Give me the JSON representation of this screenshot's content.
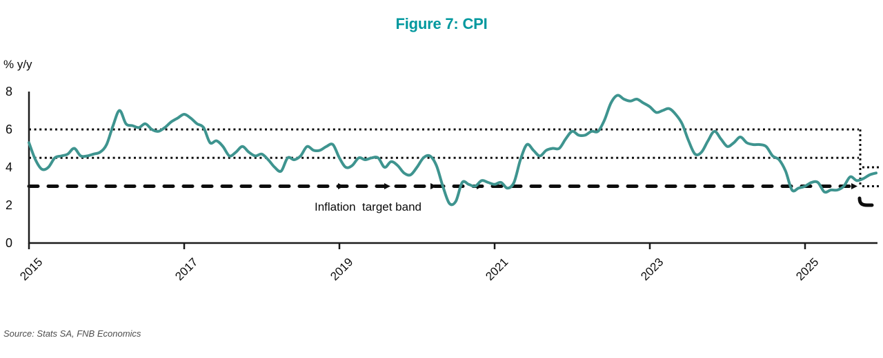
{
  "figure": {
    "title": "Figure 7: CPI",
    "y_axis_unit_label": "% y/y",
    "annotation": "Inflation  target band",
    "source": "Source: Stats SA, FNB Economics"
  },
  "colors": {
    "title_teal": "#00989E",
    "cpi_line": "#3E948F",
    "band_lines": "#0d0d0d",
    "axis": "#1a1a1a",
    "source_text": "#4d4d4d"
  },
  "chart_data": {
    "type": "line",
    "title": "Figure 7: CPI",
    "ylabel": "% y/y",
    "ylim": [
      0,
      8
    ],
    "y_ticks": [
      8,
      6,
      4,
      2,
      0
    ],
    "x_ticks": [
      "2015",
      "2017",
      "2019",
      "2021",
      "2023",
      "2025"
    ],
    "grid": false,
    "legend": "none",
    "annotation": "Inflation  target band",
    "series": [
      {
        "name": "CPI % y/y",
        "frequency": "monthly",
        "start": "2014-12",
        "end": "2025-11",
        "values": [
          5.3,
          4.4,
          3.9,
          4.0,
          4.5,
          4.6,
          4.7,
          5.0,
          4.6,
          4.6,
          4.7,
          4.8,
          5.2,
          6.2,
          7.0,
          6.3,
          6.2,
          6.1,
          6.3,
          6.0,
          5.9,
          6.1,
          6.4,
          6.6,
          6.8,
          6.6,
          6.3,
          6.1,
          5.3,
          5.4,
          5.1,
          4.6,
          4.8,
          5.1,
          4.8,
          4.6,
          4.7,
          4.4,
          4.0,
          3.8,
          4.5,
          4.4,
          4.6,
          5.1,
          4.9,
          4.9,
          5.1,
          5.2,
          4.5,
          4.0,
          4.1,
          4.5,
          4.4,
          4.5,
          4.5,
          4.0,
          4.3,
          4.1,
          3.7,
          3.6,
          4.0,
          4.5,
          4.6,
          4.1,
          3.0,
          2.1,
          2.2,
          3.2,
          3.1,
          3.0,
          3.3,
          3.2,
          3.1,
          3.2,
          2.9,
          3.2,
          4.4,
          5.2,
          4.9,
          4.6,
          4.9,
          5.0,
          5.0,
          5.5,
          5.9,
          5.7,
          5.7,
          5.9,
          5.9,
          6.5,
          7.4,
          7.8,
          7.6,
          7.5,
          7.6,
          7.4,
          7.2,
          6.9,
          7.0,
          7.1,
          6.8,
          6.3,
          5.4,
          4.7,
          4.8,
          5.4,
          5.9,
          5.5,
          5.1,
          5.3,
          5.6,
          5.3,
          5.2,
          5.2,
          5.1,
          4.6,
          4.4,
          3.8,
          2.8,
          2.9,
          3.0,
          3.2,
          3.2,
          2.7,
          2.8,
          2.8,
          3.0,
          3.5,
          3.3,
          3.4,
          3.6,
          3.7
        ]
      }
    ],
    "reference_lines": [
      {
        "name": "target-band-upper",
        "value": 6,
        "style": "dotted",
        "segment": "before-break"
      },
      {
        "name": "target-band-midpoint",
        "value": 4.5,
        "style": "dotted",
        "segment": "before-break"
      },
      {
        "name": "target-band-lower",
        "value": 3,
        "style": "bold-dashed",
        "segment": "before-break"
      },
      {
        "name": "new-target-upper",
        "value": 4,
        "style": "dotted",
        "segment": "after-break"
      },
      {
        "name": "new-target-midpoint",
        "value": 3,
        "style": "dotted",
        "segment": "after-break"
      },
      {
        "name": "new-target-lower",
        "value": 2,
        "style": "bold-dashed",
        "segment": "after-break"
      }
    ]
  }
}
